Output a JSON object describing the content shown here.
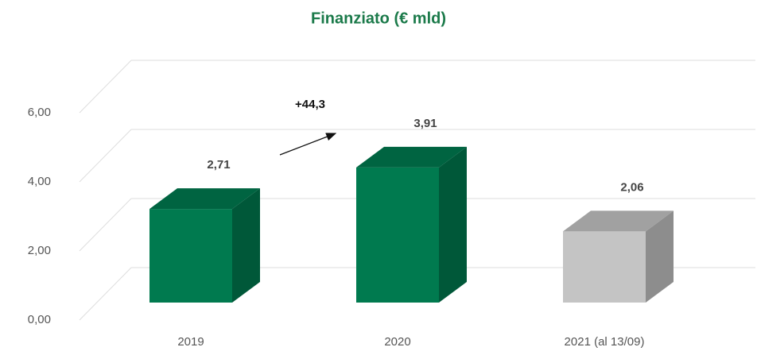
{
  "chart_data": {
    "type": "bar3d",
    "title": "Finanziato (€ mld)",
    "categories": [
      "2019",
      "2020",
      "2021 (al 13/09)"
    ],
    "values": [
      2.71,
      3.91,
      2.06
    ],
    "value_labels": [
      "2,71",
      "3,91",
      "2,06"
    ],
    "colors": [
      "#007a4f",
      "#007a4f",
      "#c4c4c4"
    ],
    "ylim": [
      0,
      6.8
    ],
    "yticks": [
      {
        "value": 0,
        "label": "0,00"
      },
      {
        "value": 2,
        "label": "2,00"
      },
      {
        "value": 4,
        "label": "4,00"
      },
      {
        "value": 6,
        "label": "6,00"
      }
    ],
    "grid": true,
    "annotation": "+44,3"
  }
}
